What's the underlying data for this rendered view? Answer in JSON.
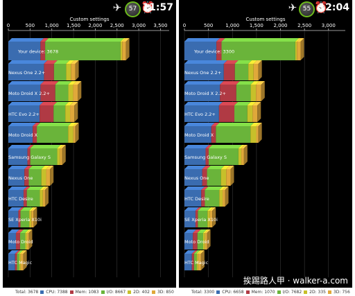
{
  "colors": {
    "cpu": "#3a6cb0",
    "mem": "#b03a44",
    "io": "#6ab43a",
    "d2": "#c7c02a",
    "d3": "#e0a83a",
    "background": "#000000"
  },
  "watermark": "挨踢路人甲 · walker-a.com",
  "screens": [
    {
      "status": {
        "airplane_icon": "airplane-icon",
        "battery": "57",
        "alarm_icon": "alarm-clock-icon",
        "time": "11:57"
      },
      "chart_data": {
        "type": "bar",
        "title": "Custom settings",
        "xlim": [
          0,
          3700
        ],
        "ticks": [
          "0",
          "500",
          "1,000",
          "1,500",
          "2,000",
          "2,500",
          "3,000",
          "3,500"
        ],
        "tick_values": [
          0,
          500,
          1000,
          1500,
          2000,
          2500,
          3000,
          3500
        ],
        "categories": [
          "Your device: 3678",
          "Nexus One 2.2+",
          "Moto Droid X 2.2+",
          "HTC Evo 2.2+",
          "Moto Droid X",
          "Samsung Galaxy S",
          "Nexus One",
          "HTC Desire",
          "SE Xperia X10i",
          "Moto Droid",
          "HTC Magic"
        ],
        "series": [
          {
            "key": "cpu",
            "values": [
              739,
              820,
              740,
              720,
              560,
              440,
              370,
              350,
              230,
              175,
              155
            ]
          },
          {
            "key": "mem",
            "values": [
              108,
              230,
              340,
              320,
              95,
              65,
              100,
              75,
              50,
              95,
              45
            ]
          },
          {
            "key": "io",
            "values": [
              1733,
              280,
              300,
              270,
              720,
              620,
              290,
              300,
              200,
              120,
              55
            ]
          },
          {
            "key": "d2",
            "values": [
              40,
              110,
              110,
              110,
              120,
              60,
              110,
              70,
              50,
              40,
              30
            ]
          },
          {
            "key": "d3",
            "values": [
              85,
              100,
              110,
              100,
              45,
              55,
              90,
              50,
              50,
              40,
              60
            ]
          }
        ]
      },
      "legend": {
        "total": "Total: 3678",
        "cpu": "CPU: 7388",
        "mem": "Mem: 1083",
        "io": "I/O: 8667",
        "d2": "2D: 402",
        "d3": "3D: 850"
      }
    },
    {
      "status": {
        "airplane_icon": "airplane-icon",
        "battery": "55",
        "alarm_icon": "alarm-clock-icon",
        "time": "12:04"
      },
      "chart_data": {
        "type": "bar",
        "title": "Custom settings",
        "xlim": [
          0,
          3350
        ],
        "ticks": [
          "0",
          "500",
          "1,000",
          "1,500",
          "2,000",
          "2,500",
          "3,000"
        ],
        "tick_values": [
          0,
          500,
          1000,
          1500,
          2000,
          2500,
          3000
        ],
        "categories": [
          "Your device: 3300",
          "Nexus One 2.2+",
          "Moto Droid X 2.2+",
          "HTC Evo 2.2+",
          "Moto Droid X",
          "Samsung Galaxy S",
          "Nexus One",
          "HTC Desire",
          "SE Xperia X10i",
          "Moto Droid",
          "HTC Magic"
        ],
        "series": [
          {
            "key": "cpu",
            "values": [
              666,
              820,
              740,
              720,
              560,
              440,
              370,
              350,
              230,
              175,
              155
            ]
          },
          {
            "key": "mem",
            "values": [
              107,
              230,
              340,
              320,
              95,
              65,
              100,
              75,
              50,
              95,
              45
            ]
          },
          {
            "key": "io",
            "values": [
              1536,
              280,
              300,
              270,
              720,
              620,
              290,
              300,
              200,
              120,
              55
            ]
          },
          {
            "key": "d2",
            "values": [
              34,
              110,
              110,
              110,
              120,
              60,
              110,
              70,
              50,
              40,
              30
            ]
          },
          {
            "key": "d3",
            "values": [
              76,
              100,
              110,
              100,
              45,
              55,
              90,
              50,
              50,
              40,
              60
            ]
          }
        ]
      },
      "legend": {
        "total": "Total: 3300",
        "cpu": "CPU: 6658",
        "mem": "Mem: 1070",
        "io": "I/O: 7682",
        "d2": "2D: 335",
        "d3": "3D: 756"
      }
    }
  ]
}
